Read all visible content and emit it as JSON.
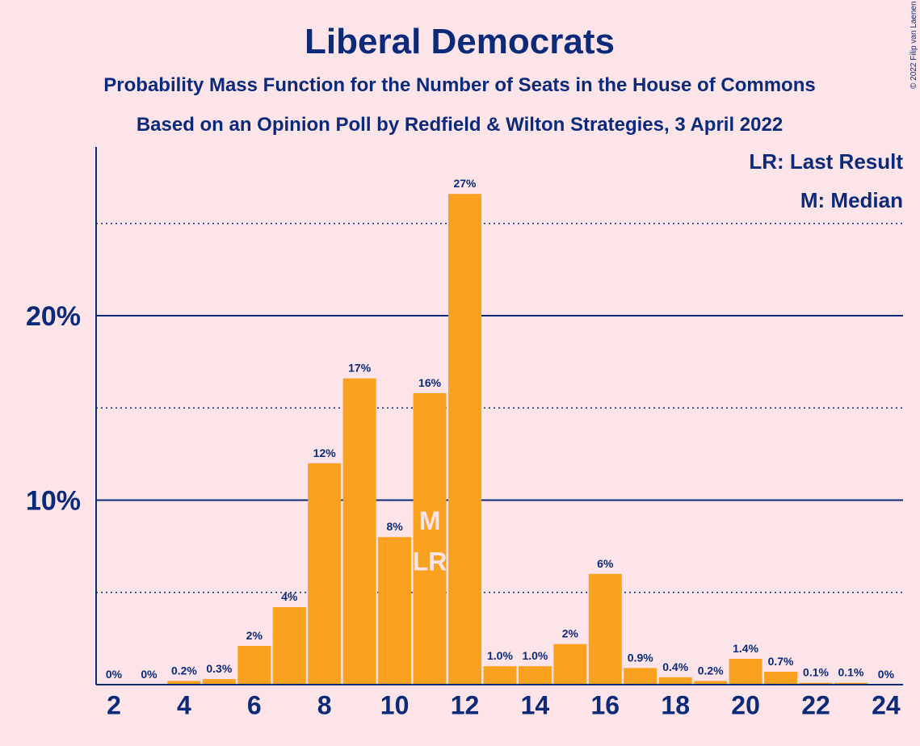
{
  "chart_data": {
    "type": "bar",
    "title": "Liberal Democrats",
    "subtitle": "Probability Mass Function for the Number of Seats in the House of Commons",
    "subtitle2": "Based on an Opinion Poll by Redfield & Wilton Strategies, 3 April 2022",
    "copyright": "© 2022 Filip van Laenen",
    "legend": {
      "lr": "LR: Last Result",
      "m": "M: Median",
      "placement": "top-right"
    },
    "x": [
      2,
      3,
      4,
      5,
      6,
      7,
      8,
      9,
      10,
      11,
      12,
      13,
      14,
      15,
      16,
      17,
      18,
      19,
      20,
      21,
      22,
      23,
      24
    ],
    "values": [
      0,
      0,
      0.2,
      0.3,
      2.1,
      4.2,
      12.0,
      16.6,
      8.0,
      15.8,
      26.6,
      1.0,
      1.0,
      2.2,
      6.0,
      0.9,
      0.4,
      0.2,
      1.4,
      0.7,
      0.1,
      0.1,
      0
    ],
    "labels": [
      "0%",
      "0%",
      "0.2%",
      "0.3%",
      "2%",
      "4%",
      "12%",
      "17%",
      "8%",
      "16%",
      "27%",
      "1.0%",
      "1.0%",
      "2%",
      "6%",
      "0.9%",
      "0.4%",
      "0.2%",
      "1.4%",
      "0.7%",
      "0.1%",
      "0.1%",
      "0%"
    ],
    "x_ticks": [
      2,
      4,
      6,
      8,
      10,
      12,
      14,
      16,
      18,
      20,
      22,
      24
    ],
    "y_ticks": [
      {
        "value": 10,
        "label": "10%"
      },
      {
        "value": 20,
        "label": "20%"
      }
    ],
    "y_minor_gridlines": [
      5,
      15,
      25
    ],
    "ylim": [
      0,
      29
    ],
    "median_seat": 11,
    "median_marker": "M",
    "last_result_seat": 11,
    "last_result_marker": "LR",
    "colors": {
      "bar": "#FAA21F",
      "axis": "#0B2A7A",
      "background": "#FDE4E8",
      "marker_text": "#FDE4E8"
    }
  }
}
